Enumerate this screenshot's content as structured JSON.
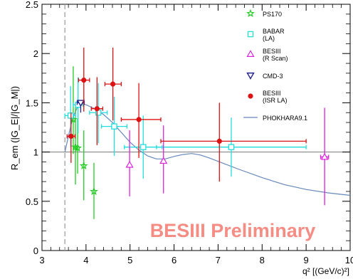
{
  "chart_data": {
    "type": "scatter",
    "title": "",
    "xlabel": "q² [(GeV/c)²]",
    "ylabel": "R_em (|G_E|/|G_M|)",
    "xlim": [
      3,
      10
    ],
    "ylim": [
      0,
      2.5
    ],
    "x_ticks": [
      3,
      4,
      5,
      6,
      7,
      8,
      9,
      10
    ],
    "y_ticks": [
      0,
      0.5,
      1,
      1.5,
      2,
      2.5
    ],
    "y_tick_labels": [
      "0",
      "0.5",
      "1",
      "1.5",
      "2",
      "2.5"
    ],
    "reference_line_y": 1,
    "threshold_x": 3.52,
    "watermark": "BESIII Preliminary",
    "legend_position": "top-right",
    "series": [
      {
        "name": "PS170",
        "marker": "star",
        "color": "#22cc22",
        "points": [
          {
            "x": 3.71,
            "y": 1.33,
            "ylo": 0.98,
            "yhi": 1.87
          },
          {
            "x": 3.76,
            "y": 1.05,
            "ylo": 0.67,
            "yhi": 1.47
          },
          {
            "x": 3.81,
            "y": 1.04,
            "ylo": 0.78,
            "yhi": 1.34
          },
          {
            "x": 3.95,
            "y": 0.86,
            "ylo": 0.51,
            "yhi": 1.22
          },
          {
            "x": 4.18,
            "y": 0.6,
            "ylo": 0.32,
            "yhi": 0.89
          }
        ]
      },
      {
        "name": "BABAR (LA)",
        "marker": "open-square",
        "color": "#22dddd",
        "points": [
          {
            "x": 3.65,
            "y": 1.37,
            "xlo": 3.52,
            "xhi": 3.76,
            "ylo": 1.05,
            "yhi": 1.67
          },
          {
            "x": 3.82,
            "y": 1.48,
            "xlo": 3.71,
            "xhi": 3.93,
            "ylo": 1.19,
            "yhi": 1.76
          },
          {
            "x": 4.28,
            "y": 1.4,
            "xlo": 4.08,
            "xhi": 4.48,
            "ylo": 1.09,
            "yhi": 1.7
          },
          {
            "x": 4.64,
            "y": 1.26,
            "xlo": 4.35,
            "xhi": 4.93,
            "ylo": 0.96,
            "yhi": 1.56
          },
          {
            "x": 5.3,
            "y": 1.05,
            "xlo": 4.87,
            "xhi": 5.73,
            "ylo": 0.73,
            "yhi": 1.37
          },
          {
            "x": 7.3,
            "y": 1.05,
            "xlo": 5.6,
            "xhi": 9.0,
            "ylo": 0.75,
            "yhi": 1.35
          }
        ]
      },
      {
        "name": "BESIII (R Scan)",
        "marker": "open-triangle-up",
        "color": "#dd22dd",
        "points": [
          {
            "x": 4.99,
            "y": 0.87,
            "ylo": 0.55,
            "yhi": 1.22
          },
          {
            "x": 5.76,
            "y": 0.91,
            "ylo": 0.58,
            "yhi": 1.27
          },
          {
            "x": 9.42,
            "y": 0.95,
            "xlo": 9.33,
            "xhi": 9.51,
            "ylo": 0.46,
            "yhi": 1.45
          }
        ]
      },
      {
        "name": "CMD-3",
        "marker": "open-triangle-down",
        "color": "#222288",
        "points": [
          {
            "x": 3.88,
            "y": 1.5,
            "xlo": 3.8,
            "xhi": 3.96,
            "ylo": 1.4,
            "yhi": 1.52
          }
        ]
      },
      {
        "name": "BESIII (ISR LA)",
        "marker": "filled-circle",
        "color": "#dd1111",
        "points": [
          {
            "x": 3.66,
            "y": 1.16,
            "xlo": 3.57,
            "xhi": 3.75,
            "ylo": 0.89,
            "yhi": 1.4
          },
          {
            "x": 3.95,
            "y": 1.73,
            "xlo": 3.83,
            "xhi": 4.08,
            "ylo": 1.41,
            "yhi": 2.06
          },
          {
            "x": 4.25,
            "y": 1.44,
            "xlo": 4.12,
            "xhi": 4.38,
            "ylo": 1.07,
            "yhi": 1.76
          },
          {
            "x": 4.61,
            "y": 1.69,
            "xlo": 4.43,
            "xhi": 4.8,
            "ylo": 1.32,
            "yhi": 2.06
          },
          {
            "x": 5.2,
            "y": 1.33,
            "xlo": 4.8,
            "xhi": 5.7,
            "ylo": 0.94,
            "yhi": 1.7
          },
          {
            "x": 7.03,
            "y": 1.11,
            "xlo": 5.7,
            "xhi": 9.0,
            "ylo": 0.7,
            "yhi": 1.5
          }
        ]
      },
      {
        "name": "PHOKHARA9.1",
        "marker": "line",
        "color": "#6688bb",
        "curve": [
          [
            3.52,
            1.0
          ],
          [
            3.58,
            1.12
          ],
          [
            3.65,
            1.26
          ],
          [
            3.72,
            1.37
          ],
          [
            3.8,
            1.45
          ],
          [
            3.9,
            1.49
          ],
          [
            4.0,
            1.48
          ],
          [
            4.2,
            1.44
          ],
          [
            4.4,
            1.38
          ],
          [
            4.6,
            1.3
          ],
          [
            4.8,
            1.2
          ],
          [
            5.0,
            1.1
          ],
          [
            5.2,
            1.02
          ],
          [
            5.4,
            0.96
          ],
          [
            5.6,
            0.93
          ],
          [
            5.8,
            0.93
          ],
          [
            6.0,
            0.955
          ],
          [
            6.2,
            0.975
          ],
          [
            6.4,
            0.985
          ],
          [
            6.6,
            0.97
          ],
          [
            6.8,
            0.94
          ],
          [
            7.0,
            0.905
          ],
          [
            7.5,
            0.82
          ],
          [
            8.0,
            0.74
          ],
          [
            8.5,
            0.67
          ],
          [
            9.0,
            0.62
          ],
          [
            9.5,
            0.585
          ],
          [
            10.0,
            0.56
          ]
        ]
      }
    ]
  }
}
